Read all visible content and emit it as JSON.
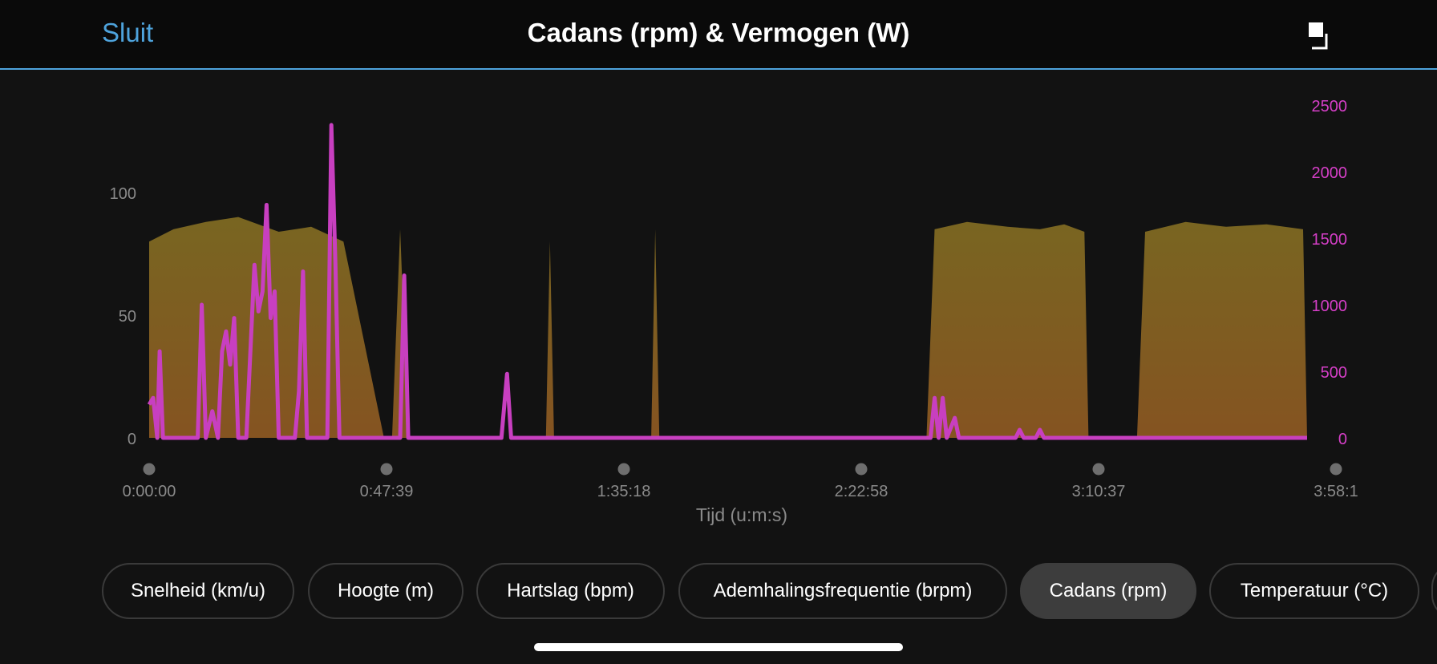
{
  "header": {
    "close_label": "Sluit",
    "title": "Cadans (rpm) & Vermogen (W)",
    "expand_icon": "fullscreen-toggle-icon"
  },
  "chart_data": {
    "type": "area",
    "xlabel": "Tijd (u:m:s)",
    "x_tick_labels": [
      "0:00:00",
      "0:47:39",
      "1:35:18",
      "2:22:58",
      "3:10:37",
      "3:58:1"
    ],
    "x_range_seconds": [
      0,
      14300
    ],
    "y_left": {
      "ylim": [
        0,
        135
      ],
      "ticks": [
        0,
        50,
        100
      ],
      "color": "#8a8a8a"
    },
    "y_right": {
      "ylim": [
        0,
        2500
      ],
      "ticks": [
        0,
        500,
        1000,
        1500,
        2000,
        2500
      ],
      "color": "#d63fc8"
    },
    "series": [
      {
        "axis": "left",
        "style": "area",
        "color": "#8a6a20",
        "segments": [
          [
            0,
            80
          ],
          [
            300,
            85
          ],
          [
            700,
            88
          ],
          [
            1100,
            90
          ],
          [
            1600,
            84
          ],
          [
            2000,
            86
          ],
          [
            2400,
            80
          ],
          [
            2900,
            0
          ],
          [
            3000,
            0
          ],
          [
            3100,
            85
          ],
          [
            3200,
            0
          ],
          [
            4900,
            0
          ],
          [
            4950,
            80
          ],
          [
            5000,
            0
          ],
          [
            6200,
            0
          ],
          [
            6250,
            85
          ],
          [
            6300,
            0
          ],
          [
            9600,
            0
          ],
          [
            9700,
            85
          ],
          [
            10100,
            88
          ],
          [
            10600,
            86
          ],
          [
            11000,
            85
          ],
          [
            11300,
            87
          ],
          [
            11550,
            84
          ],
          [
            11600,
            0
          ],
          [
            12200,
            0
          ],
          [
            12300,
            84
          ],
          [
            12800,
            88
          ],
          [
            13300,
            86
          ],
          [
            13800,
            87
          ],
          [
            14250,
            85
          ],
          [
            14300,
            0
          ]
        ]
      },
      {
        "axis": "right",
        "style": "line",
        "color": "#c83fc0",
        "points": [
          [
            0,
            250
          ],
          [
            50,
            300
          ],
          [
            100,
            0
          ],
          [
            130,
            650
          ],
          [
            170,
            0
          ],
          [
            600,
            0
          ],
          [
            650,
            1000
          ],
          [
            700,
            0
          ],
          [
            780,
            200
          ],
          [
            850,
            0
          ],
          [
            900,
            650
          ],
          [
            950,
            800
          ],
          [
            1000,
            550
          ],
          [
            1050,
            900
          ],
          [
            1100,
            0
          ],
          [
            1200,
            0
          ],
          [
            1300,
            1300
          ],
          [
            1350,
            950
          ],
          [
            1400,
            1100
          ],
          [
            1450,
            1750
          ],
          [
            1500,
            900
          ],
          [
            1550,
            1100
          ],
          [
            1600,
            0
          ],
          [
            1800,
            0
          ],
          [
            1850,
            350
          ],
          [
            1900,
            1250
          ],
          [
            1950,
            0
          ],
          [
            2200,
            0
          ],
          [
            2250,
            2350
          ],
          [
            2300,
            1300
          ],
          [
            2350,
            0
          ],
          [
            3100,
            0
          ],
          [
            3150,
            1220
          ],
          [
            3200,
            0
          ],
          [
            4350,
            0
          ],
          [
            4420,
            480
          ],
          [
            4470,
            0
          ],
          [
            9650,
            0
          ],
          [
            9700,
            300
          ],
          [
            9750,
            0
          ],
          [
            9800,
            300
          ],
          [
            9850,
            0
          ],
          [
            9950,
            150
          ],
          [
            10000,
            0
          ],
          [
            10700,
            0
          ],
          [
            10750,
            60
          ],
          [
            10800,
            0
          ],
          [
            10950,
            0
          ],
          [
            11000,
            60
          ],
          [
            11050,
            0
          ],
          [
            14300,
            0
          ]
        ]
      }
    ]
  },
  "tabs": [
    {
      "label": "Snelheid (km/u)",
      "active": false
    },
    {
      "label": "Hoogte (m)",
      "active": false
    },
    {
      "label": "Hartslag (bpm)",
      "active": false
    },
    {
      "label": "Ademhalingsfrequentie (brpm)",
      "active": false
    },
    {
      "label": "Cadans (rpm)",
      "active": true
    },
    {
      "label": "Temperatuur (°C)",
      "active": false
    }
  ]
}
